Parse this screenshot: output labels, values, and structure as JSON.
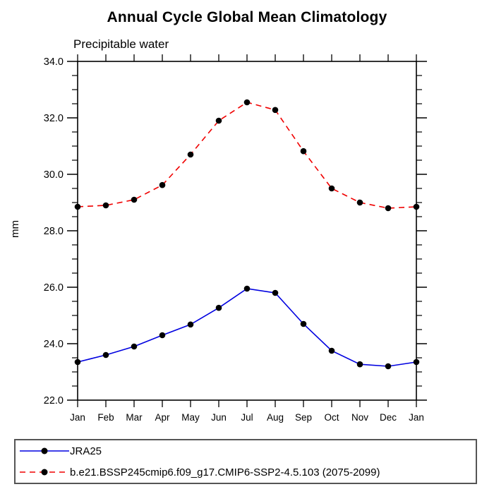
{
  "chart_data": {
    "type": "line",
    "title": "Annual Cycle Global Mean Climatology",
    "subtitle": "Precipitable water",
    "ylabel": "mm",
    "xlabel": "",
    "x_labels": [
      "Jan",
      "Feb",
      "Mar",
      "Apr",
      "May",
      "Jun",
      "Jul",
      "Aug",
      "Sep",
      "Oct",
      "Nov",
      "Dec",
      "Jan"
    ],
    "ylim": [
      22.0,
      34.0
    ],
    "ytick_major": 2.0,
    "ytick_minor": 0.5,
    "ytick_labels": [
      "34.0",
      "32.0",
      "30.0",
      "28.0",
      "26.0",
      "24.0",
      "22.0"
    ],
    "grid": false,
    "legend_position": "bottom-left-box",
    "axis_color": "#000000",
    "marker": "filled-circle",
    "marker_color": "#000000",
    "series": [
      {
        "name": "JRA25",
        "color": "#0000e0",
        "style": "solid",
        "values": [
          23.35,
          23.6,
          23.9,
          24.3,
          24.68,
          25.27,
          25.95,
          25.8,
          24.7,
          23.75,
          23.27,
          23.2,
          23.35
        ]
      },
      {
        "name": "b.e21.BSSP245cmip6.f09_g17.CMIP6-SSP2-4.5.103 (2075-2099)",
        "color": "#f00000",
        "style": "dashed",
        "values": [
          28.85,
          28.9,
          29.1,
          29.62,
          30.7,
          31.9,
          32.55,
          32.28,
          30.82,
          29.5,
          29.0,
          28.8,
          28.85
        ]
      }
    ]
  }
}
